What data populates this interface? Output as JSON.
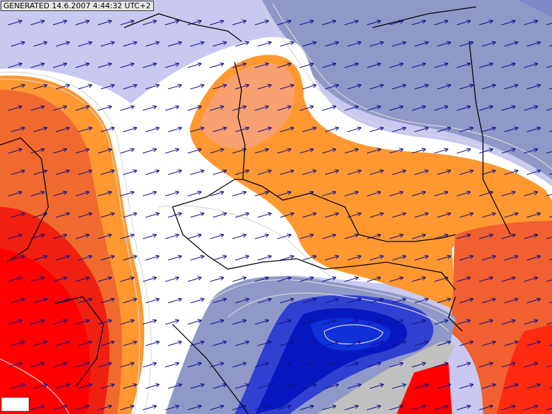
{
  "header": {
    "label": "GENERATED 14.6.2007 4:44:32 UTC+2"
  }
}
